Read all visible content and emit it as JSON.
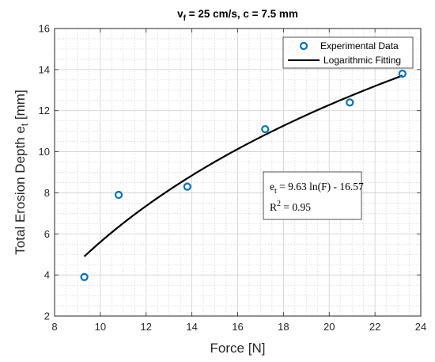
{
  "chart_data": {
    "type": "scatter",
    "title": {
      "main": "v",
      "sub": "f",
      "rest": " = 25 cm/s, c = 7.5 mm"
    },
    "xlabel": "Force [N]",
    "ylabel": {
      "main": "Total Erosion Depth e",
      "sub": "t",
      "rest": " [mm]"
    },
    "xlim": [
      8,
      24
    ],
    "ylim": [
      2,
      16
    ],
    "xticks": [
      8,
      10,
      12,
      14,
      16,
      18,
      20,
      22,
      24
    ],
    "yticks": [
      2,
      4,
      6,
      8,
      10,
      12,
      14,
      16
    ],
    "grid": true,
    "minor_grid": true,
    "legend_position": "top-right",
    "series": [
      {
        "name": "Experimental Data",
        "kind": "markers",
        "color": "#0072BD",
        "x": [
          9.3,
          10.8,
          13.8,
          17.2,
          20.9,
          23.2
        ],
        "y": [
          3.9,
          7.9,
          8.3,
          11.1,
          12.4,
          13.8
        ]
      },
      {
        "name": "Logarithmic Fitting",
        "kind": "line",
        "color": "#000000",
        "x_range": [
          9.3,
          23.2
        ],
        "coefficients": {
          "a": 9.63,
          "b": -16.57
        }
      }
    ],
    "annotation": {
      "line1": {
        "main": "e",
        "sub": "t",
        "rest": " = 9.63 ln(F) - 16.57"
      },
      "line2": {
        "main": "R",
        "sup": "2",
        "rest": " = 0.95"
      }
    }
  }
}
